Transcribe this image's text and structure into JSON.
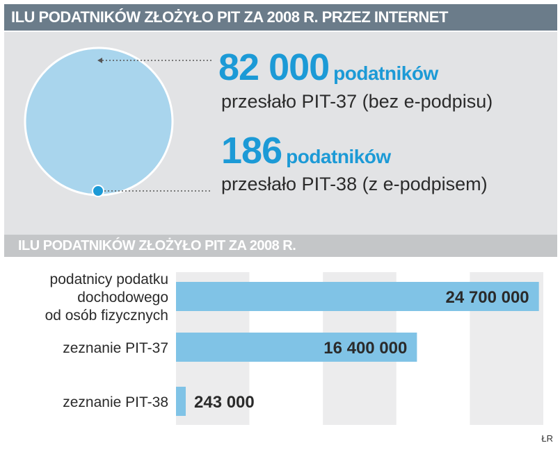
{
  "header": {
    "title": "ILU PODATNIKÓW ZŁOŻYŁO PIT ZA 2008 R. PRZEZ INTERNET"
  },
  "infographic": {
    "items": [
      {
        "number": "82 000",
        "unit": "podatników",
        "description": "przesłało PIT-37 (bez e-podpisu)",
        "value": 82000
      },
      {
        "number": "186",
        "unit": "podatników",
        "description": "przesłało PIT-38 (z e-podpisem)",
        "value": 186
      }
    ],
    "colors": {
      "large_circle": "#a9d5ed",
      "small_circle": "#1c9ad6"
    }
  },
  "chart_data": {
    "type": "bar",
    "orientation": "horizontal",
    "title": "ILU PODATNIKÓW ZŁOŻYŁO PIT ZA 2008 R.",
    "categories": [
      [
        "podatnicy podatku",
        "dochodowego",
        "od osób fizycznych"
      ],
      [
        "zeznanie PIT-37"
      ],
      [
        "zeznanie PIT-38"
      ]
    ],
    "values": [
      24700000,
      16400000,
      243000
    ],
    "value_labels": [
      "24 700 000",
      "16 400 000",
      "243 000"
    ],
    "xlim": [
      0,
      25000000
    ],
    "grid": true,
    "bar_color": "#80c3e6"
  },
  "footer": {
    "source": "ŁR"
  }
}
